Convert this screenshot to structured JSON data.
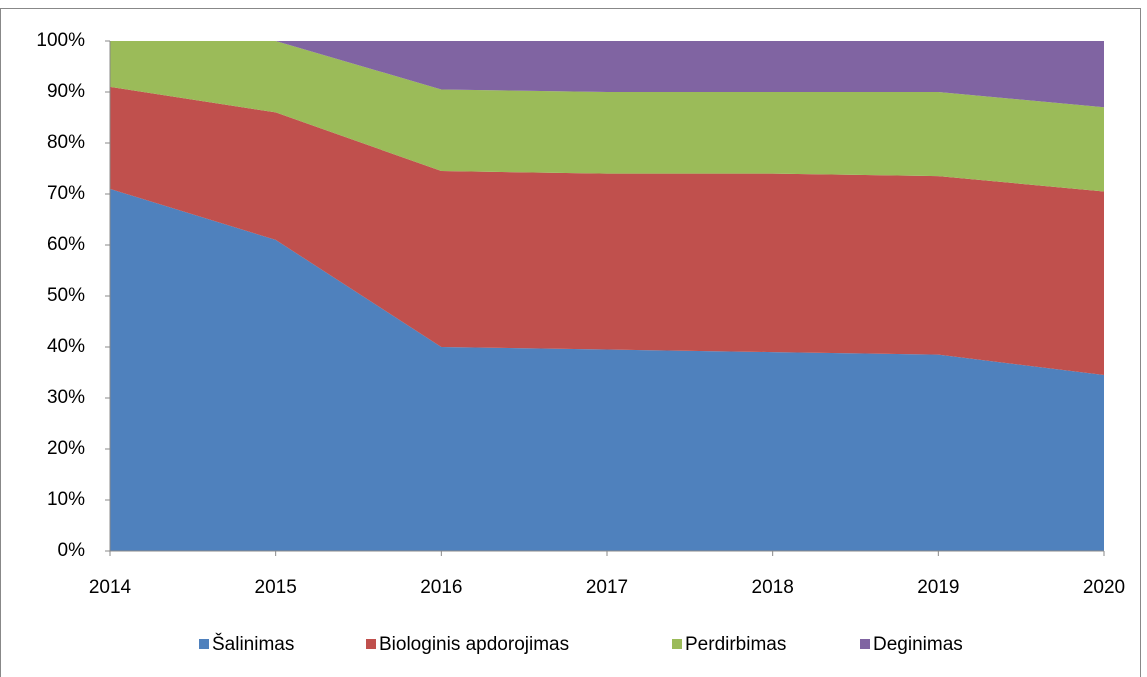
{
  "chart_data": {
    "type": "stacked_area",
    "categories": [
      "2014",
      "2015",
      "2016",
      "2017",
      "2018",
      "2019",
      "2020"
    ],
    "series": [
      {
        "name": "Šalinimas",
        "color": "#4f81bd",
        "values": [
          71,
          61,
          40,
          39.5,
          39,
          38.5,
          34.5
        ]
      },
      {
        "name": "Biologinis apdorojimas",
        "color": "#c0504d",
        "values": [
          20,
          25,
          34.5,
          34.5,
          35,
          35,
          36
        ]
      },
      {
        "name": "Perdirbimas",
        "color": "#9bbb59",
        "values": [
          9,
          14,
          16,
          16,
          16,
          16.5,
          16.5
        ]
      },
      {
        "name": "Deginimas",
        "color": "#8064a2",
        "values": [
          0,
          0,
          9.5,
          10,
          10,
          10,
          13
        ]
      }
    ],
    "ylim": [
      0,
      100
    ],
    "yticks": [
      {
        "value": 0,
        "label": "0%"
      },
      {
        "value": 10,
        "label": "10%"
      },
      {
        "value": 20,
        "label": "20%"
      },
      {
        "value": 30,
        "label": "30%"
      },
      {
        "value": 40,
        "label": "40%"
      },
      {
        "value": 50,
        "label": "50%"
      },
      {
        "value": 60,
        "label": "60%"
      },
      {
        "value": 70,
        "label": "70%"
      },
      {
        "value": 80,
        "label": "80%"
      },
      {
        "value": 90,
        "label": "90%"
      },
      {
        "value": 100,
        "label": "100%"
      }
    ],
    "legend": "bottom"
  }
}
